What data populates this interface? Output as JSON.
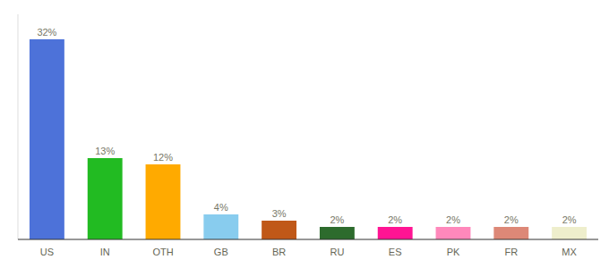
{
  "chart_data": {
    "type": "bar",
    "categories": [
      "US",
      "IN",
      "OTH",
      "GB",
      "BR",
      "RU",
      "ES",
      "PK",
      "FR",
      "MX"
    ],
    "values": [
      32,
      13,
      12,
      4,
      3,
      2,
      2,
      2,
      2,
      2
    ],
    "value_labels": [
      "32%",
      "13%",
      "12%",
      "4%",
      "3%",
      "2%",
      "2%",
      "2%",
      "2%",
      "2%"
    ],
    "colors": [
      "#4d72d9",
      "#22bb22",
      "#ffaa00",
      "#88ccee",
      "#c05818",
      "#2d6b2d",
      "#ff1493",
      "#ff88bb",
      "#dd8877",
      "#eeeecc"
    ],
    "ylim": [
      0,
      36
    ],
    "data_labels": true,
    "tick_labels": "x",
    "grid": false
  }
}
